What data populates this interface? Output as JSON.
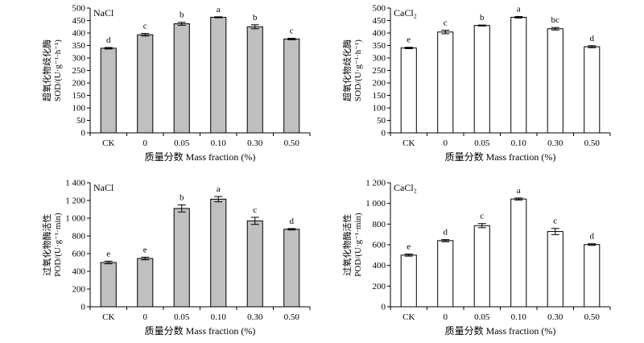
{
  "chart_data": [
    {
      "type": "bar",
      "title": "NaCl",
      "categories": [
        "CK",
        "0",
        "0.05",
        "0.10",
        "0.30",
        "0.50"
      ],
      "values": [
        339,
        393,
        437,
        463,
        425,
        376
      ],
      "errors": [
        3,
        5,
        6,
        2,
        8,
        3
      ],
      "significance": [
        "d",
        "c",
        "b",
        "a",
        "b",
        "c"
      ],
      "ylabel_lines": [
        "超氧化物歧化酶",
        "SOD/(U·g⁻¹·h⁻¹)"
      ],
      "xlabel": "质量分数 Mass fraction (%)",
      "ylim": [
        0,
        500
      ],
      "yticks": [
        0,
        50,
        100,
        150,
        200,
        250,
        300,
        350,
        400,
        450,
        500
      ],
      "ytick_labels": [
        "0",
        "50",
        "100",
        "150",
        "200",
        "250",
        "300",
        "350",
        "400",
        "450",
        "500"
      ],
      "bar_color": "#c0c0c0"
    },
    {
      "type": "bar",
      "title": "CaCl₂",
      "categories": [
        "CK",
        "0",
        "0.05",
        "0.10",
        "0.30",
        "0.50"
      ],
      "values": [
        340,
        404,
        430,
        463,
        417,
        345
      ],
      "errors": [
        3,
        7,
        2,
        3,
        5,
        4
      ],
      "significance": [
        "e",
        "c",
        "b",
        "a",
        "bc",
        "d"
      ],
      "ylabel_lines": [
        "超氧化物歧化酶",
        "SOD/(U·g⁻¹·h⁻¹)"
      ],
      "xlabel": "质量分数 Mass fraction (%)",
      "ylim": [
        0,
        500
      ],
      "yticks": [
        0,
        50,
        100,
        150,
        200,
        250,
        300,
        350,
        400,
        450,
        500
      ],
      "ytick_labels": [
        "0",
        "50",
        "100",
        "150",
        "200",
        "250",
        "300",
        "350",
        "400",
        "450",
        "500"
      ],
      "bar_color": "#ffffff"
    },
    {
      "type": "bar",
      "title": "NaCl",
      "categories": [
        "CK",
        "0",
        "0.05",
        "0.10",
        "0.30",
        "0.50"
      ],
      "values": [
        500,
        545,
        1110,
        1215,
        970,
        875
      ],
      "errors": [
        15,
        15,
        40,
        30,
        40,
        8
      ],
      "significance": [
        "e",
        "e",
        "b",
        "a",
        "c",
        "d"
      ],
      "ylabel_lines": [
        "过氧化物酶活性",
        "POD/(U·g⁻¹·min)"
      ],
      "xlabel": "质量分数 Mass fraction (%)",
      "ylim": [
        0,
        1400
      ],
      "yticks": [
        0,
        200,
        400,
        600,
        800,
        1000,
        1200,
        1400
      ],
      "ytick_labels": [
        "0",
        "200",
        "400",
        "600",
        "800",
        "1 000",
        "1 200",
        "1 400"
      ],
      "bar_color": "#c0c0c0"
    },
    {
      "type": "bar",
      "title": "CaCl₂",
      "categories": [
        "CK",
        "0",
        "0.05",
        "0.10",
        "0.30",
        "0.50"
      ],
      "values": [
        500,
        640,
        785,
        1043,
        728,
        602
      ],
      "errors": [
        10,
        10,
        20,
        10,
        30,
        8
      ],
      "significance": [
        "e",
        "d",
        "c",
        "a",
        "c",
        "d"
      ],
      "ylabel_lines": [
        "过氧化物酶活性",
        "POD/(U·g⁻¹·min)"
      ],
      "xlabel": "质量分数 Mass fraction (%)",
      "ylim": [
        0,
        1200
      ],
      "yticks": [
        0,
        200,
        400,
        600,
        800,
        1000,
        1200
      ],
      "ytick_labels": [
        "0",
        "200",
        "400",
        "600",
        "800",
        "1 000",
        "1 200"
      ],
      "bar_color": "#ffffff"
    }
  ]
}
